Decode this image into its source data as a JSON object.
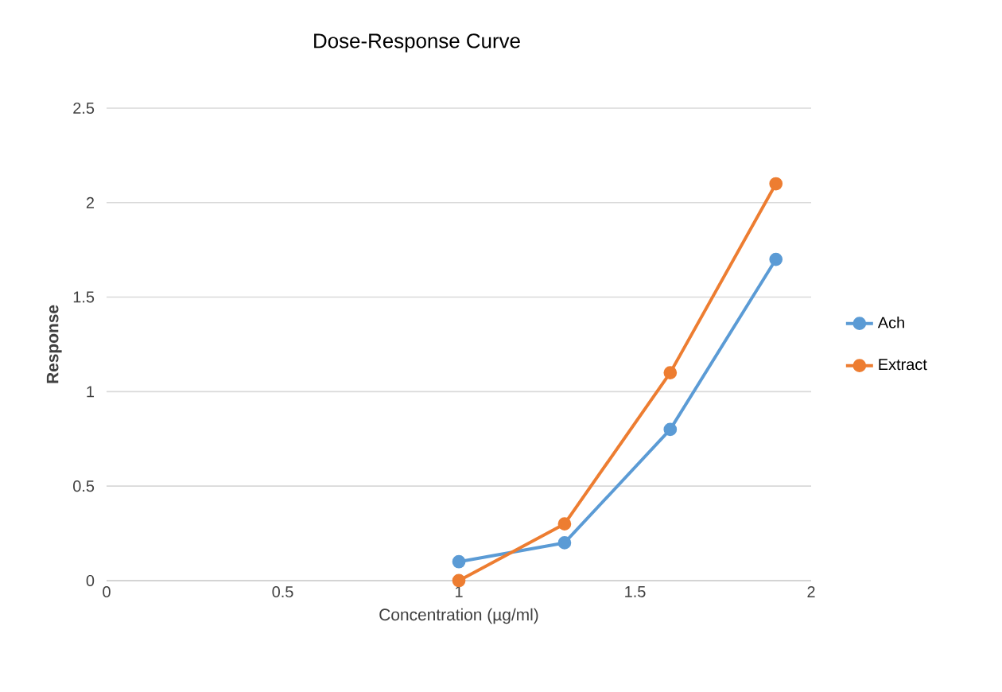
{
  "chart_data": {
    "type": "line",
    "title": "Dose-Response Curve",
    "xlabel": "Concentration (µg/ml)",
    "ylabel": "Response",
    "x": [
      1,
      1.3,
      1.6,
      1.9
    ],
    "series": [
      {
        "name": "Ach",
        "color": "#5b9bd5",
        "values": [
          0.1,
          0.2,
          0.8,
          1.7
        ]
      },
      {
        "name": "Extract",
        "color": "#ed7d31",
        "values": [
          0,
          0.3,
          1.1,
          2.1
        ]
      }
    ],
    "xlim": [
      0,
      2
    ],
    "xticks": [
      0,
      0.5,
      1,
      1.5,
      2
    ],
    "ylim": [
      0,
      2.5
    ],
    "yticks": [
      0,
      0.5,
      1,
      1.5,
      2,
      2.5
    ],
    "grid": "y",
    "legend": "right",
    "marker": "circle",
    "line_style": "solid"
  }
}
